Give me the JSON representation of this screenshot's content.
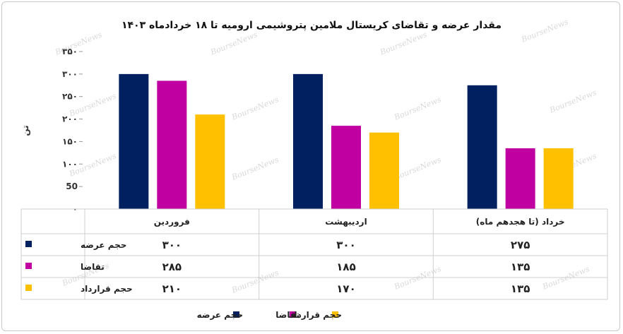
{
  "chart_data": {
    "type": "bar",
    "title": "مقدار عرضه و تقاضای کریستال ملامین پتروشیمی ارومیه تا ۱۸ خردادماه ۱۴۰۳",
    "ylabel": "تن",
    "xlabel": "",
    "ylim": [
      0,
      350
    ],
    "yticks": [
      0,
      50,
      100,
      150,
      200,
      250,
      300,
      350
    ],
    "ytick_labels": [
      "۰",
      "50",
      "۱۰۰",
      "۱۵۰",
      "۲۰۰",
      "۲۵۰",
      "۳۰۰",
      "۳۵۰"
    ],
    "categories": [
      "فروردین",
      "اردیبهشت",
      "خرداد (تا هجدهم ماه)"
    ],
    "series": [
      {
        "name": "حجم عرضه",
        "color": "#002060",
        "values": [
          300,
          300,
          275
        ],
        "labels": [
          "۳۰۰",
          "۳۰۰",
          "۲۷۵"
        ]
      },
      {
        "name": "تقاضا",
        "color": "#c000a0",
        "values": [
          285,
          185,
          135
        ],
        "labels": [
          "۲۸۵",
          "۱۸۵",
          "۱۳۵"
        ]
      },
      {
        "name": "حجم قرارداد",
        "color": "#ffc000",
        "values": [
          210,
          170,
          135
        ],
        "labels": [
          "۲۱۰",
          "۱۷۰",
          "۱۳۵"
        ]
      }
    ],
    "grid": false,
    "data_table": true,
    "legend_position": "bottom"
  },
  "watermark": "BourseNews"
}
